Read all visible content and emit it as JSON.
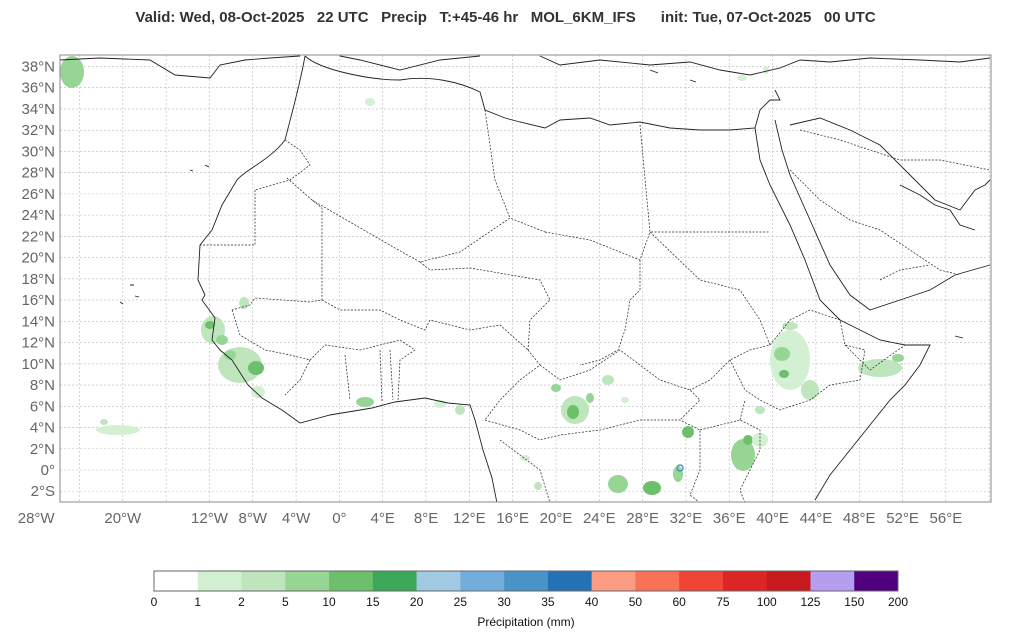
{
  "header": {
    "valid": "Valid: Wed, 08-Oct-2025",
    "utc": "22 UTC",
    "field": "Precip",
    "lead": "T:+45-46 hr",
    "model": "MOL_6KM_IFS",
    "init": "init: Tue, 07-Oct-2025",
    "init_utc": "00 UTC"
  },
  "axes": {
    "lat_labels": [
      "38°N",
      "36°N",
      "34°N",
      "32°N",
      "30°N",
      "28°N",
      "26°N",
      "24°N",
      "22°N",
      "20°N",
      "18°N",
      "16°N",
      "14°N",
      "12°N",
      "10°N",
      "8°N",
      "6°N",
      "4°N",
      "2°N",
      "0°",
      "2°S"
    ],
    "lon_labels": [
      "28°W",
      "20°W",
      "12°W",
      "8°W",
      "4°W",
      "0°",
      "4°E",
      "8°E",
      "12°E",
      "16°E",
      "20°E",
      "24°E",
      "28°E",
      "32°E",
      "36°E",
      "40°E",
      "44°E",
      "48°E",
      "52°E",
      "56°E"
    ]
  },
  "colorbar": {
    "label": "Précipitation (mm)",
    "ticks": [
      "0",
      "1",
      "2",
      "5",
      "10",
      "15",
      "20",
      "25",
      "30",
      "35",
      "40",
      "50",
      "60",
      "75",
      "100",
      "125",
      "150",
      "200"
    ],
    "colors": [
      "#ffffff",
      "#d3f0d3",
      "#bfe5bd",
      "#97d594",
      "#6cc06c",
      "#3ca85a",
      "#a2c9e2",
      "#73addb",
      "#4a93c9",
      "#2471b5",
      "#fb9b81",
      "#f97256",
      "#ef4535",
      "#dc2525",
      "#c71a1e",
      "#b49ef0",
      "#50007f"
    ]
  },
  "map": {
    "ocean": "#ffffff",
    "grid_color": "#b8b8b8",
    "coast_color": "#222222"
  }
}
